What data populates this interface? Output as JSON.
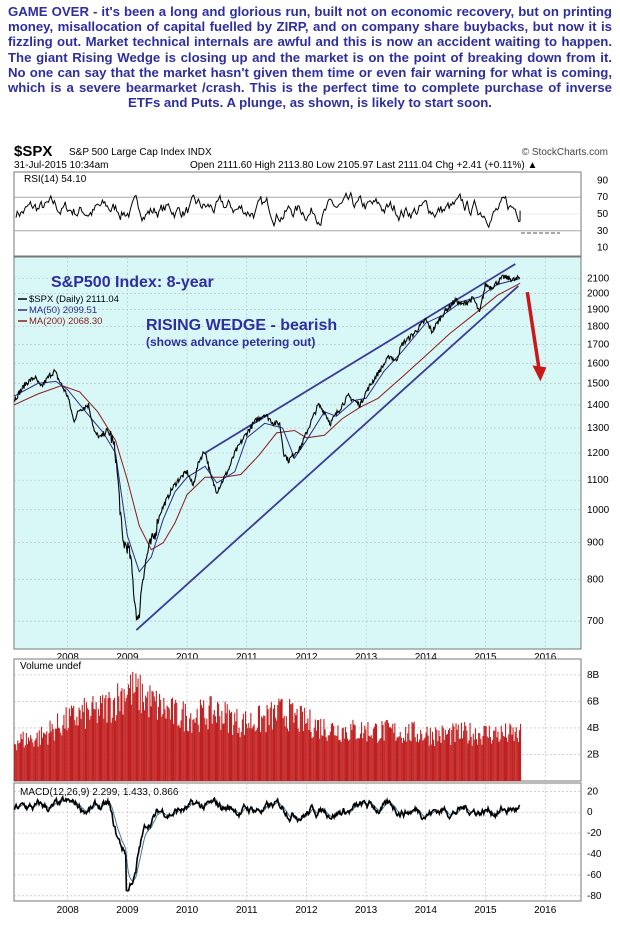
{
  "commentary": "GAME OVER - it's been a long and glorious run, built not on economic recovery, but on printing money, misallocation of capital fuelled by ZIRP, and on company share buybacks, but now it is fizzling out. Market technical internals are awful and this is now an accident waiting to happen. The giant Rising Wedge is closing up and the market is on the point of breaking down from it. No one can say that the market hasn't given them time or even fair warning for what is coming, which is a severe bearmarket /crash. This is the perfect time to complete purchase of inverse ETFs and Puts. A plunge, as shown, is likely to start soon.",
  "header": {
    "symbol": "$SPX",
    "name": "S&P 500 Large Cap Index  INDX",
    "date": "31-Jul-2015 10:34am",
    "quote": "Open 2111.60   High 2113.80   Low 2105.97   Last 2111.04   Chg +2.41 (+0.11%) ▲",
    "source": "© StockCharts.com"
  },
  "annotations": {
    "index_title": "S&P500 Index: 8-year",
    "pattern_title": "RISING WEDGE - bearish",
    "pattern_sub": "(shows advance petering out)"
  },
  "colors": {
    "text_blue": "#2e2e9e",
    "panel_bg": "#d8f8f8",
    "grid": "#b8b8b8",
    "price": "#000000",
    "ma50": "#2a2a8a",
    "ma200": "#8b1a1a",
    "wedge": "#3a3a9a",
    "arrow": "#c81818",
    "volume": "#c02020"
  },
  "chart_data": [
    {
      "type": "line",
      "panel": "RSI",
      "label": "RSI(14) 54.10",
      "last": 54.1,
      "ylim": [
        0,
        100
      ],
      "y_ticks": [
        "90",
        "70",
        "50",
        "30",
        "10"
      ],
      "y_tick_values": [
        90,
        70,
        50,
        30,
        10
      ],
      "ref_lines": [
        70,
        30
      ]
    },
    {
      "type": "line",
      "panel": "Price",
      "scale": "log",
      "ylim": [
        640,
        2250
      ],
      "y_ticks": [
        "2100",
        "2000",
        "1900",
        "1800",
        "1700",
        "1600",
        "1500",
        "1400",
        "1300",
        "1200",
        "1100",
        "1000",
        "900",
        "800",
        "700"
      ],
      "y_tick_values": [
        2100,
        2000,
        1900,
        1800,
        1700,
        1600,
        1500,
        1400,
        1300,
        1200,
        1100,
        1000,
        900,
        800,
        700
      ],
      "x_ticks": [
        "2008",
        "2009",
        "2010",
        "2011",
        "2012",
        "2013",
        "2014",
        "2015",
        "2016"
      ],
      "x_tick_values": [
        2008,
        2009,
        2010,
        2011,
        2012,
        2013,
        2014,
        2015,
        2016
      ],
      "xlim": [
        2007.1,
        2016.6
      ],
      "legend": [
        {
          "label": "$SPX (Daily) 2111.04",
          "color": "#000000"
        },
        {
          "label": "MA(50) 2099.51",
          "color": "#2a2a8a"
        },
        {
          "label": "MA(200) 2068.30",
          "color": "#8b1a1a"
        }
      ],
      "series": [
        {
          "name": "$SPX",
          "x": [
            2007.1,
            2007.3,
            2007.45,
            2007.55,
            2007.7,
            2007.78,
            2007.9,
            2008.0,
            2008.1,
            2008.2,
            2008.35,
            2008.45,
            2008.55,
            2008.65,
            2008.72,
            2008.8,
            2008.86,
            2008.92,
            2009.0,
            2009.05,
            2009.12,
            2009.18,
            2009.25,
            2009.35,
            2009.45,
            2009.55,
            2009.65,
            2009.75,
            2009.85,
            2010.0,
            2010.1,
            2010.2,
            2010.3,
            2010.4,
            2010.5,
            2010.6,
            2010.7,
            2010.8,
            2011.0,
            2011.15,
            2011.3,
            2011.45,
            2011.55,
            2011.62,
            2011.7,
            2011.8,
            2011.9,
            2012.0,
            2012.2,
            2012.3,
            2012.4,
            2012.5,
            2012.7,
            2012.8,
            2012.9,
            2013.0,
            2013.2,
            2013.4,
            2013.5,
            2013.6,
            2013.8,
            2014.0,
            2014.1,
            2014.3,
            2014.5,
            2014.6,
            2014.8,
            2014.9,
            2015.0,
            2015.1,
            2015.3,
            2015.5,
            2015.58
          ],
          "values": [
            1420,
            1500,
            1530,
            1480,
            1540,
            1560,
            1490,
            1440,
            1330,
            1380,
            1400,
            1280,
            1260,
            1290,
            1270,
            1200,
            1050,
            900,
            890,
            860,
            750,
            690,
            800,
            880,
            920,
            990,
            1030,
            1070,
            1100,
            1130,
            1080,
            1170,
            1210,
            1110,
            1060,
            1100,
            1140,
            1200,
            1280,
            1330,
            1360,
            1320,
            1320,
            1200,
            1170,
            1200,
            1220,
            1280,
            1400,
            1370,
            1320,
            1360,
            1440,
            1420,
            1400,
            1460,
            1550,
            1640,
            1610,
            1700,
            1760,
            1840,
            1770,
            1880,
            1960,
            1930,
            1970,
            1880,
            2060,
            2040,
            2110,
            2090,
            2111
          ]
        },
        {
          "name": "MA(50)",
          "x": [
            2007.1,
            2007.5,
            2007.8,
            2008.0,
            2008.3,
            2008.6,
            2008.8,
            2009.0,
            2009.2,
            2009.4,
            2009.6,
            2009.8,
            2010.0,
            2010.3,
            2010.5,
            2010.8,
            2011.0,
            2011.3,
            2011.6,
            2011.8,
            2012.0,
            2012.3,
            2012.5,
            2012.8,
            2013.0,
            2013.3,
            2013.6,
            2014.0,
            2014.3,
            2014.6,
            2014.9,
            2015.2,
            2015.58
          ],
          "values": [
            1440,
            1500,
            1510,
            1470,
            1370,
            1280,
            1200,
            920,
            820,
            860,
            970,
            1060,
            1110,
            1150,
            1090,
            1130,
            1260,
            1320,
            1300,
            1180,
            1250,
            1370,
            1350,
            1420,
            1430,
            1560,
            1660,
            1820,
            1870,
            1950,
            1980,
            2060,
            2100
          ]
        },
        {
          "name": "MA(200)",
          "x": [
            2007.1,
            2007.5,
            2007.9,
            2008.2,
            2008.5,
            2008.8,
            2009.0,
            2009.2,
            2009.4,
            2009.6,
            2009.8,
            2010.0,
            2010.3,
            2010.6,
            2010.9,
            2011.2,
            2011.5,
            2011.8,
            2012.0,
            2012.3,
            2012.6,
            2012.9,
            2013.2,
            2013.6,
            2014.0,
            2014.4,
            2014.8,
            2015.2,
            2015.58
          ],
          "values": [
            1400,
            1450,
            1490,
            1460,
            1370,
            1250,
            1100,
            950,
            880,
            900,
            960,
            1050,
            1110,
            1110,
            1120,
            1190,
            1280,
            1290,
            1260,
            1270,
            1340,
            1390,
            1430,
            1530,
            1640,
            1760,
            1870,
            1990,
            2068
          ]
        }
      ],
      "wedge_lines": [
        {
          "x": [
            2009.15,
            2015.55
          ],
          "values": [
            680,
            2050
          ]
        },
        {
          "x": [
            2010.3,
            2015.5
          ],
          "values": [
            1200,
            2200
          ]
        }
      ],
      "forecast_arrow": {
        "x": [
          2015.7,
          2015.92
        ],
        "values": [
          2010,
          1510
        ]
      }
    },
    {
      "type": "bar",
      "panel": "Volume",
      "label": "Volume undef",
      "ylim": [
        0,
        9.2
      ],
      "y_ticks": [
        "8B",
        "6B",
        "4B",
        "2B"
      ],
      "y_tick_values": [
        8,
        6,
        4,
        2
      ],
      "x": [
        2007.1,
        2007.5,
        2007.9,
        2008.2,
        2008.5,
        2008.8,
        2009.0,
        2009.2,
        2009.5,
        2009.8,
        2010.1,
        2010.5,
        2010.9,
        2011.3,
        2011.6,
        2011.9,
        2012.3,
        2012.7,
        2013.1,
        2013.5,
        2013.9,
        2014.3,
        2014.7,
        2015.1,
        2015.58
      ],
      "values": [
        2.8,
        3.0,
        4.0,
        4.6,
        4.8,
        5.6,
        6.5,
        6.0,
        5.2,
        4.6,
        4.5,
        4.8,
        4.0,
        4.3,
        4.8,
        4.2,
        3.7,
        3.5,
        3.5,
        3.4,
        3.3,
        3.2,
        3.3,
        3.3,
        3.2
      ]
    },
    {
      "type": "line",
      "panel": "MACD",
      "label": "MACD(12,26,9) 2.299, 1.433, 0.866",
      "ylim": [
        -85,
        28
      ],
      "y_ticks": [
        "20",
        "0",
        "-20",
        "-40",
        "-60",
        "-80"
      ],
      "y_tick_values": [
        20,
        0,
        -20,
        -40,
        -60,
        -80
      ],
      "x_ticks": [
        "2008",
        "2009",
        "2010",
        "2011",
        "2012",
        "2013",
        "2014",
        "2015",
        "2016"
      ],
      "x_tick_values": [
        2008,
        2009,
        2010,
        2011,
        2012,
        2013,
        2014,
        2015,
        2016
      ]
    }
  ]
}
